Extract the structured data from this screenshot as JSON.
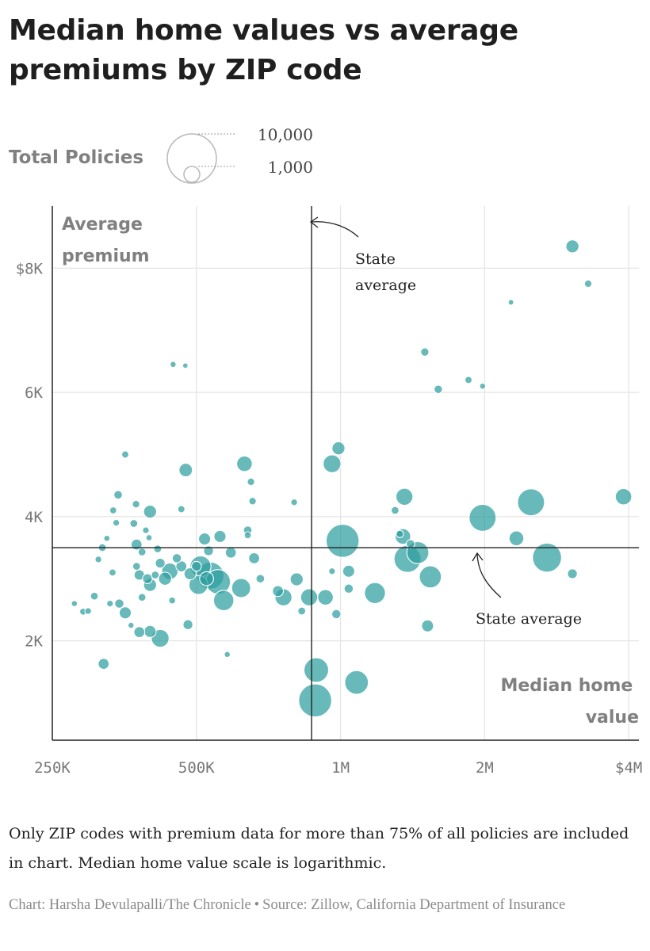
{
  "title": "Median home values vs average premiums by ZIP code",
  "legend": {
    "label": "Total Policies",
    "sizes": [
      {
        "policies": 10000,
        "label": "10,000"
      },
      {
        "policies": 1000,
        "label": "1,000"
      }
    ]
  },
  "note": "Only ZIP codes with premium data for more than 75% of all policies are included in chart. Median home value scale is logarithmic.",
  "credit": {
    "chart": "Chart: Harsha Devulapalli/The Chronicle",
    "separator": "•",
    "source": "Source: Zillow, California Department of Insurance"
  },
  "colors": {
    "bubble_fill": "#2e9ea0",
    "bubble_stroke": "#ffffff",
    "grid": "#e3e3e3",
    "axis": "#222222",
    "axis_label": "#808080",
    "tick": "#777777"
  },
  "chart_data": {
    "type": "scatter",
    "x_scale": "log",
    "xlabel": "Median home value",
    "ylabel": "Average premium",
    "xlim": [
      250000,
      4200000
    ],
    "ylim": [
      400,
      9000
    ],
    "x_ticks": [
      {
        "value": 250000,
        "label": "250K"
      },
      {
        "value": 500000,
        "label": "500K"
      },
      {
        "value": 1000000,
        "label": "1M"
      },
      {
        "value": 2000000,
        "label": "2M"
      },
      {
        "value": 4000000,
        "label": "$4M"
      }
    ],
    "y_ticks": [
      {
        "value": 2000,
        "label": "2K"
      },
      {
        "value": 4000,
        "label": "4K"
      },
      {
        "value": 6000,
        "label": "6K"
      },
      {
        "value": 8000,
        "label": "$8K"
      }
    ],
    "grid": true,
    "reference_lines": {
      "x": {
        "value": 870000,
        "label": "State average"
      },
      "y": {
        "value": 3500,
        "label": "State average"
      }
    },
    "points": [
      {
        "x": 3050000,
        "y": 8350,
        "size": 700
      },
      {
        "x": 3290000,
        "y": 7750,
        "size": 230
      },
      {
        "x": 2270000,
        "y": 7450,
        "size": 130
      },
      {
        "x": 1500000,
        "y": 6650,
        "size": 280
      },
      {
        "x": 1850000,
        "y": 6200,
        "size": 210
      },
      {
        "x": 1980000,
        "y": 6100,
        "size": 150
      },
      {
        "x": 1600000,
        "y": 6050,
        "size": 290
      },
      {
        "x": 447000,
        "y": 6450,
        "size": 150
      },
      {
        "x": 474000,
        "y": 6430,
        "size": 120
      },
      {
        "x": 990000,
        "y": 5100,
        "size": 700
      },
      {
        "x": 960000,
        "y": 4850,
        "size": 1300
      },
      {
        "x": 630000,
        "y": 4850,
        "size": 1000
      },
      {
        "x": 475000,
        "y": 4750,
        "size": 750
      },
      {
        "x": 650000,
        "y": 4560,
        "size": 230
      },
      {
        "x": 355000,
        "y": 5000,
        "size": 210
      },
      {
        "x": 343000,
        "y": 4350,
        "size": 300
      },
      {
        "x": 374000,
        "y": 4200,
        "size": 230
      },
      {
        "x": 335000,
        "y": 4100,
        "size": 200
      },
      {
        "x": 400000,
        "y": 4080,
        "size": 700
      },
      {
        "x": 465000,
        "y": 4120,
        "size": 210
      },
      {
        "x": 655000,
        "y": 4250,
        "size": 230
      },
      {
        "x": 800000,
        "y": 4230,
        "size": 180
      },
      {
        "x": 1360000,
        "y": 4320,
        "size": 1200
      },
      {
        "x": 1300000,
        "y": 4100,
        "size": 250
      },
      {
        "x": 3900000,
        "y": 4320,
        "size": 1100
      },
      {
        "x": 2500000,
        "y": 4230,
        "size": 3000
      },
      {
        "x": 1980000,
        "y": 3980,
        "size": 3000
      },
      {
        "x": 2330000,
        "y": 3650,
        "size": 900
      },
      {
        "x": 2700000,
        "y": 3340,
        "size": 3500
      },
      {
        "x": 3050000,
        "y": 3080,
        "size": 400
      },
      {
        "x": 1010000,
        "y": 3610,
        "size": 4500
      },
      {
        "x": 1350000,
        "y": 3680,
        "size": 1000
      },
      {
        "x": 1380000,
        "y": 3320,
        "size": 3000
      },
      {
        "x": 1450000,
        "y": 3420,
        "size": 2000
      },
      {
        "x": 1400000,
        "y": 3560,
        "size": 300
      },
      {
        "x": 1330000,
        "y": 3720,
        "size": 220
      },
      {
        "x": 1540000,
        "y": 3030,
        "size": 2000
      },
      {
        "x": 960000,
        "y": 3120,
        "size": 180
      },
      {
        "x": 1040000,
        "y": 3120,
        "size": 600
      },
      {
        "x": 1180000,
        "y": 2770,
        "size": 1800
      },
      {
        "x": 1040000,
        "y": 2840,
        "size": 350
      },
      {
        "x": 930000,
        "y": 2700,
        "size": 1000
      },
      {
        "x": 980000,
        "y": 2430,
        "size": 350
      },
      {
        "x": 1520000,
        "y": 2240,
        "size": 600
      },
      {
        "x": 890000,
        "y": 1530,
        "size": 2500
      },
      {
        "x": 885000,
        "y": 1040,
        "size": 4500
      },
      {
        "x": 1080000,
        "y": 1330,
        "size": 2300
      },
      {
        "x": 520000,
        "y": 3640,
        "size": 600
      },
      {
        "x": 560000,
        "y": 3680,
        "size": 600
      },
      {
        "x": 530000,
        "y": 3450,
        "size": 400
      },
      {
        "x": 590000,
        "y": 3420,
        "size": 500
      },
      {
        "x": 640000,
        "y": 3780,
        "size": 300
      },
      {
        "x": 640000,
        "y": 3700,
        "size": 200
      },
      {
        "x": 660000,
        "y": 3330,
        "size": 500
      },
      {
        "x": 510000,
        "y": 3200,
        "size": 1800
      },
      {
        "x": 535000,
        "y": 3050,
        "size": 3000
      },
      {
        "x": 555000,
        "y": 2950,
        "size": 2500
      },
      {
        "x": 505000,
        "y": 2900,
        "size": 1500
      },
      {
        "x": 570000,
        "y": 2650,
        "size": 1700
      },
      {
        "x": 620000,
        "y": 2850,
        "size": 1500
      },
      {
        "x": 680000,
        "y": 3000,
        "size": 300
      },
      {
        "x": 740000,
        "y": 2800,
        "size": 500
      },
      {
        "x": 760000,
        "y": 2700,
        "size": 1200
      },
      {
        "x": 810000,
        "y": 2990,
        "size": 700
      },
      {
        "x": 830000,
        "y": 2480,
        "size": 250
      },
      {
        "x": 860000,
        "y": 2700,
        "size": 1200
      },
      {
        "x": 465000,
        "y": 3200,
        "size": 500
      },
      {
        "x": 455000,
        "y": 3330,
        "size": 350
      },
      {
        "x": 440000,
        "y": 3120,
        "size": 1100
      },
      {
        "x": 430000,
        "y": 3000,
        "size": 700
      },
      {
        "x": 485000,
        "y": 3080,
        "size": 600
      },
      {
        "x": 500000,
        "y": 3200,
        "size": 400
      },
      {
        "x": 525000,
        "y": 3000,
        "size": 800
      },
      {
        "x": 420000,
        "y": 3250,
        "size": 400
      },
      {
        "x": 385000,
        "y": 3430,
        "size": 250
      },
      {
        "x": 375000,
        "y": 3550,
        "size": 500
      },
      {
        "x": 395000,
        "y": 3000,
        "size": 400
      },
      {
        "x": 400000,
        "y": 2900,
        "size": 700
      },
      {
        "x": 380000,
        "y": 3060,
        "size": 450
      },
      {
        "x": 375000,
        "y": 3200,
        "size": 250
      },
      {
        "x": 410000,
        "y": 3060,
        "size": 250
      },
      {
        "x": 415000,
        "y": 3480,
        "size": 250
      },
      {
        "x": 392000,
        "y": 3780,
        "size": 180
      },
      {
        "x": 398000,
        "y": 3660,
        "size": 160
      },
      {
        "x": 370000,
        "y": 3890,
        "size": 250
      },
      {
        "x": 340000,
        "y": 3900,
        "size": 180
      },
      {
        "x": 318000,
        "y": 3500,
        "size": 250
      },
      {
        "x": 312000,
        "y": 3310,
        "size": 180
      },
      {
        "x": 334000,
        "y": 3100,
        "size": 200
      },
      {
        "x": 325000,
        "y": 3650,
        "size": 160
      },
      {
        "x": 385000,
        "y": 2700,
        "size": 250
      },
      {
        "x": 345000,
        "y": 2600,
        "size": 350
      },
      {
        "x": 355000,
        "y": 2450,
        "size": 600
      },
      {
        "x": 330000,
        "y": 2600,
        "size": 180
      },
      {
        "x": 306000,
        "y": 2720,
        "size": 250
      },
      {
        "x": 297000,
        "y": 2480,
        "size": 180
      },
      {
        "x": 290000,
        "y": 2470,
        "size": 200
      },
      {
        "x": 278000,
        "y": 2600,
        "size": 150
      },
      {
        "x": 365000,
        "y": 2250,
        "size": 150
      },
      {
        "x": 380000,
        "y": 2140,
        "size": 500
      },
      {
        "x": 400000,
        "y": 2150,
        "size": 600
      },
      {
        "x": 420000,
        "y": 2040,
        "size": 1300
      },
      {
        "x": 445000,
        "y": 2650,
        "size": 200
      },
      {
        "x": 480000,
        "y": 2260,
        "size": 400
      },
      {
        "x": 320000,
        "y": 1630,
        "size": 500
      },
      {
        "x": 580000,
        "y": 1780,
        "size": 150
      }
    ]
  }
}
